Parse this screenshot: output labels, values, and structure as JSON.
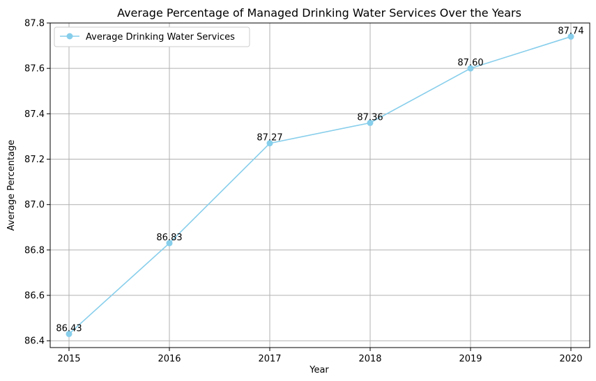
{
  "chart_data": {
    "type": "line",
    "title": "Average Percentage of Managed Drinking Water Services Over the Years",
    "xlabel": "Year",
    "ylabel": "Average Percentage",
    "x": [
      "2015",
      "2016",
      "2017",
      "2018",
      "2019",
      "2020"
    ],
    "series": [
      {
        "name": "Average Drinking Water Services",
        "values": [
          86.43,
          86.83,
          87.27,
          87.36,
          87.6,
          87.74
        ],
        "labels": [
          "86.43",
          "86.83",
          "87.27",
          "87.36",
          "87.60",
          "87.74"
        ],
        "color": "#87ceeb"
      }
    ],
    "ylim": [
      86.37,
      87.8
    ],
    "yticks": [
      "86.4",
      "86.6",
      "86.8",
      "87.0",
      "87.2",
      "87.4",
      "87.6",
      "87.8"
    ],
    "grid": true,
    "legend_position": "upper-left",
    "markers": true
  }
}
